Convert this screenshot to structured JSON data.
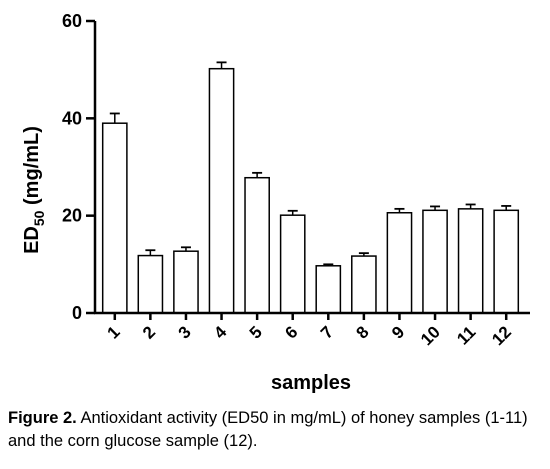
{
  "chart_data": {
    "type": "bar",
    "categories": [
      "1",
      "2",
      "3",
      "4",
      "5",
      "6",
      "7",
      "8",
      "9",
      "10",
      "11",
      "12"
    ],
    "values": [
      39.0,
      11.8,
      12.7,
      50.2,
      27.8,
      20.1,
      9.7,
      11.7,
      20.6,
      21.1,
      21.4,
      21.1
    ],
    "errors": [
      2.0,
      1.1,
      0.8,
      1.3,
      1.0,
      0.9,
      0.3,
      0.6,
      0.8,
      0.8,
      0.9,
      0.9
    ],
    "ylabel_main": "ED",
    "ylabel_sub": "50",
    "ylabel_unit": " (mg/mL)",
    "xlabel": "samples",
    "ylim": [
      0,
      60
    ],
    "yticks": [
      "0",
      "20",
      "40",
      "60"
    ],
    "grid": false,
    "bar_fill": "#ffffff",
    "bar_stroke": "#000000"
  },
  "caption": {
    "label": "Figure 2.",
    "text": " Antioxidant activity (ED50 in mg/mL) of honey samples (1-11) and the corn glucose sample (12)."
  }
}
